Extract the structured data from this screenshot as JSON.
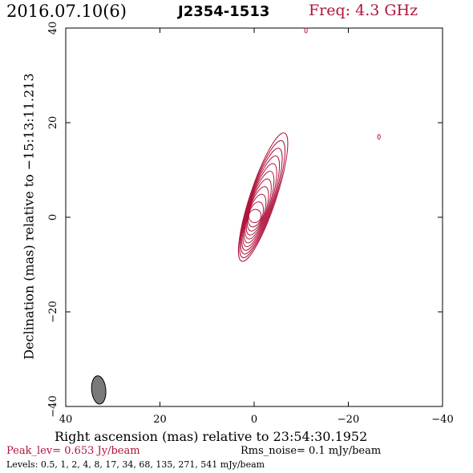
{
  "header": {
    "date": "2016.07.10(6)",
    "source": "J2354-1513",
    "freq": "Freq: 4.3 GHz"
  },
  "footer": {
    "peak": "Peak_lev=  0.653 Jy/beam",
    "rms": "Rms_noise=  0.1 mJy/beam",
    "levels": "Levels: 0.5,   1,   2,   4,   8,   17,   34,   68,  135,  271,  541 mJy/beam"
  },
  "chart_data": {
    "type": "contour",
    "title": "J2354-1513",
    "xlabel": "Right ascension (mas) relative to 23:54:30.1952",
    "ylabel": "Declination (mas) relative to −15:13:11.213",
    "xlim": [
      40,
      -40
    ],
    "ylim": [
      -40,
      40
    ],
    "x_ticks": [
      40,
      20,
      0,
      -20,
      -40
    ],
    "y_ticks": [
      -40,
      -20,
      0,
      20,
      40
    ],
    "x_tick_labels": [
      "40",
      "20",
      "0",
      "−20",
      "−40"
    ],
    "y_tick_labels": [
      "−40",
      "−20",
      "0",
      "20",
      "40"
    ],
    "contour_levels_mJy_per_beam": [
      0.5,
      1,
      2,
      4,
      8,
      17,
      34,
      68,
      135,
      271,
      541
    ],
    "peak_Jy_per_beam": 0.653,
    "rms_noise_mJy_per_beam": 0.1,
    "core": {
      "ra": 0,
      "dec": 0
    },
    "jet_tip": {
      "ra": -6,
      "dec": 18
    },
    "outer_extent": {
      "ra_min": -8,
      "ra_max": 3,
      "dec_min": -9.5,
      "dec_max": 19.5
    },
    "isolated_features": [
      {
        "ra": -26.5,
        "dec": 17
      },
      {
        "ra": -11,
        "dec": 39.5
      }
    ],
    "beam": {
      "ra": 33,
      "dec": -36.5,
      "major_mas": 6,
      "minor_mas": 2.4,
      "pa_deg": -5
    },
    "colors": {
      "contour": "#b0143c",
      "beam": "#7a7a7a",
      "axes": "#000000"
    }
  }
}
